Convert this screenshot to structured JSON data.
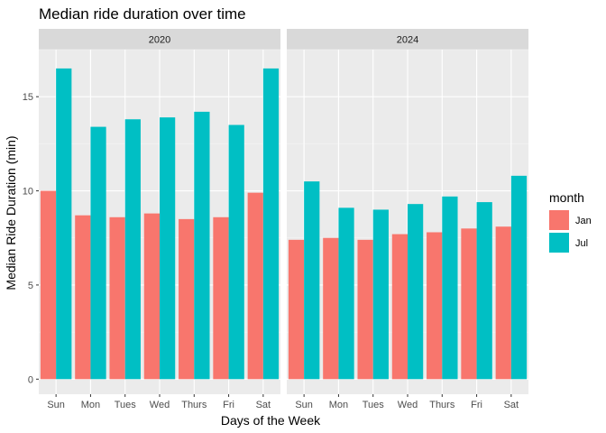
{
  "chart_data": {
    "type": "bar",
    "title": "Median ride duration over time",
    "xlabel": "Days of the Week",
    "ylabel": "Median Ride Duration (min)",
    "ylim": [
      -0.8,
      17.5
    ],
    "yticks": [
      0,
      5,
      10,
      15
    ],
    "categories": [
      "Sun",
      "Mon",
      "Tues",
      "Wed",
      "Thurs",
      "Fri",
      "Sat"
    ],
    "legend": {
      "title": "month",
      "placement": "right",
      "items": [
        {
          "name": "Jan",
          "color": "#F8766D"
        },
        {
          "name": "Jul",
          "color": "#00BFC4"
        }
      ]
    },
    "panels": [
      {
        "facet": "2020",
        "series": [
          {
            "name": "Jan",
            "color": "#F8766D",
            "values": [
              10.0,
              8.7,
              8.6,
              8.8,
              8.5,
              8.6,
              9.9
            ]
          },
          {
            "name": "Jul",
            "color": "#00BFC4",
            "values": [
              16.5,
              13.4,
              13.8,
              13.9,
              14.2,
              13.5,
              16.5
            ]
          }
        ]
      },
      {
        "facet": "2024",
        "series": [
          {
            "name": "Jan",
            "color": "#F8766D",
            "values": [
              7.4,
              7.5,
              7.4,
              7.7,
              7.8,
              8.0,
              8.1
            ]
          },
          {
            "name": "Jul",
            "color": "#00BFC4",
            "values": [
              10.5,
              9.1,
              9.0,
              9.3,
              9.7,
              9.4,
              10.8
            ]
          }
        ]
      }
    ],
    "grid": true
  }
}
